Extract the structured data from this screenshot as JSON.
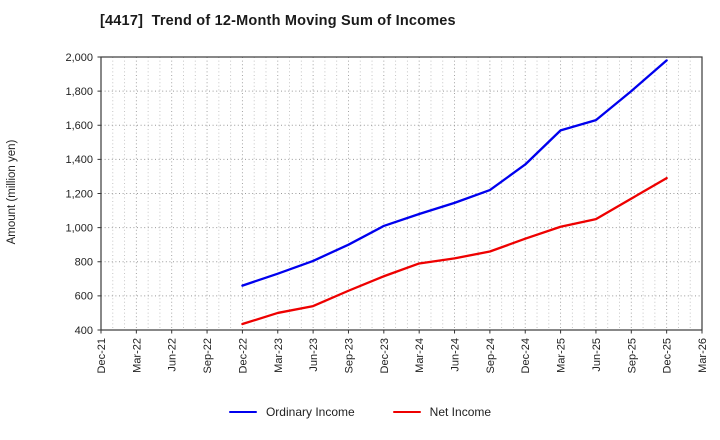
{
  "title": "[4417]  Trend of 12-Month Moving Sum of Incomes",
  "ylabel": "Amount (million yen)",
  "chart_data": {
    "type": "line",
    "x_ticks": [
      "Dec-21",
      "Mar-22",
      "Jun-22",
      "Sep-22",
      "Dec-22",
      "Mar-23",
      "Jun-23",
      "Sep-23",
      "Dec-23",
      "Mar-24",
      "Jun-24",
      "Sep-24",
      "Dec-24",
      "Mar-25",
      "Jun-25",
      "Sep-25",
      "Dec-25",
      "Mar-26"
    ],
    "ylim": [
      400,
      2000
    ],
    "ytick_step": 200,
    "ytick_labels": [
      "400",
      "600",
      "800",
      "1,000",
      "1,200",
      "1,400",
      "1,600",
      "1,800",
      "2,000"
    ],
    "grid": {
      "horizontal": "major-dotted",
      "vertical": "monthly-minor-and-quarterly-major-dotted"
    },
    "legend_position": "bottom-center",
    "series": [
      {
        "name": "Ordinary Income",
        "color": "#0000ee",
        "x": [
          "Dec-22",
          "Mar-23",
          "Jun-23",
          "Sep-23",
          "Dec-23",
          "Mar-24",
          "Jun-24",
          "Sep-24",
          "Dec-24",
          "Mar-25",
          "Jun-25",
          "Sep-25",
          "Dec-25"
        ],
        "values": [
          660,
          730,
          805,
          900,
          1010,
          1080,
          1145,
          1220,
          1370,
          1570,
          1630,
          1800,
          1980
        ]
      },
      {
        "name": "Net Income",
        "color": "#ee0000",
        "x": [
          "Dec-22",
          "Mar-23",
          "Jun-23",
          "Sep-23",
          "Dec-23",
          "Mar-24",
          "Jun-24",
          "Sep-24",
          "Dec-24",
          "Mar-25",
          "Jun-25",
          "Sep-25",
          "Dec-25"
        ],
        "values": [
          435,
          500,
          540,
          630,
          715,
          790,
          820,
          860,
          935,
          1005,
          1050,
          1170,
          1290
        ]
      }
    ]
  }
}
